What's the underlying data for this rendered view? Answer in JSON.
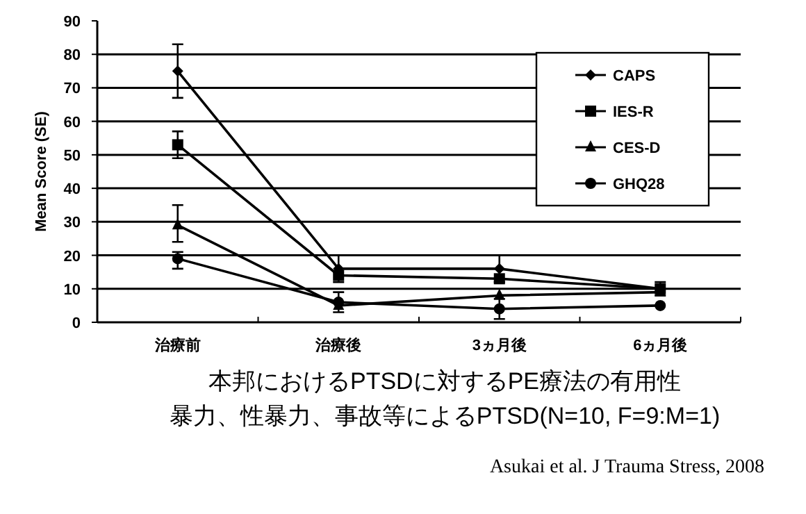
{
  "chart_data": {
    "type": "line",
    "title": "本邦におけるPTSDに対するPE療法の有用性",
    "subtitle": "暴力、性暴力、事故等によるPTSD(N=10, F=9:M=1)",
    "ylabel": "Mean Score (SE)",
    "categories": [
      "治療前",
      "治療後",
      "3ヵ月後",
      "6ヵ月後"
    ],
    "series": [
      {
        "name": "CAPS",
        "color": "#000000",
        "marker": "diamond",
        "values": [
          75,
          16,
          16,
          10
        ],
        "errors": [
          [
            67,
            83
          ],
          [
            12,
            20
          ],
          [
            12,
            20
          ],
          [
            8,
            12
          ]
        ]
      },
      {
        "name": "IES-R",
        "color": "#000000",
        "marker": "square",
        "values": [
          53,
          14,
          13,
          10
        ],
        "errors": [
          [
            49,
            57
          ],
          null,
          null,
          null
        ]
      },
      {
        "name": "CES-D",
        "color": "#000000",
        "marker": "triangle",
        "values": [
          29,
          5,
          8,
          9
        ],
        "errors": [
          [
            24,
            35
          ],
          null,
          null,
          null
        ]
      },
      {
        "name": "GHQ28",
        "color": "#000000",
        "marker": "circle",
        "values": [
          19,
          6,
          4,
          5
        ],
        "errors": [
          [
            16,
            21
          ],
          [
            3,
            9
          ],
          [
            1,
            7
          ],
          null
        ]
      }
    ],
    "ylim": [
      0,
      90
    ],
    "yticks": [
      0,
      10,
      20,
      30,
      40,
      50,
      60,
      70,
      80,
      90
    ],
    "grid": "y",
    "legend": "top right",
    "annotations": [
      "Asukai et al. J Trauma Stress, 2008"
    ]
  }
}
